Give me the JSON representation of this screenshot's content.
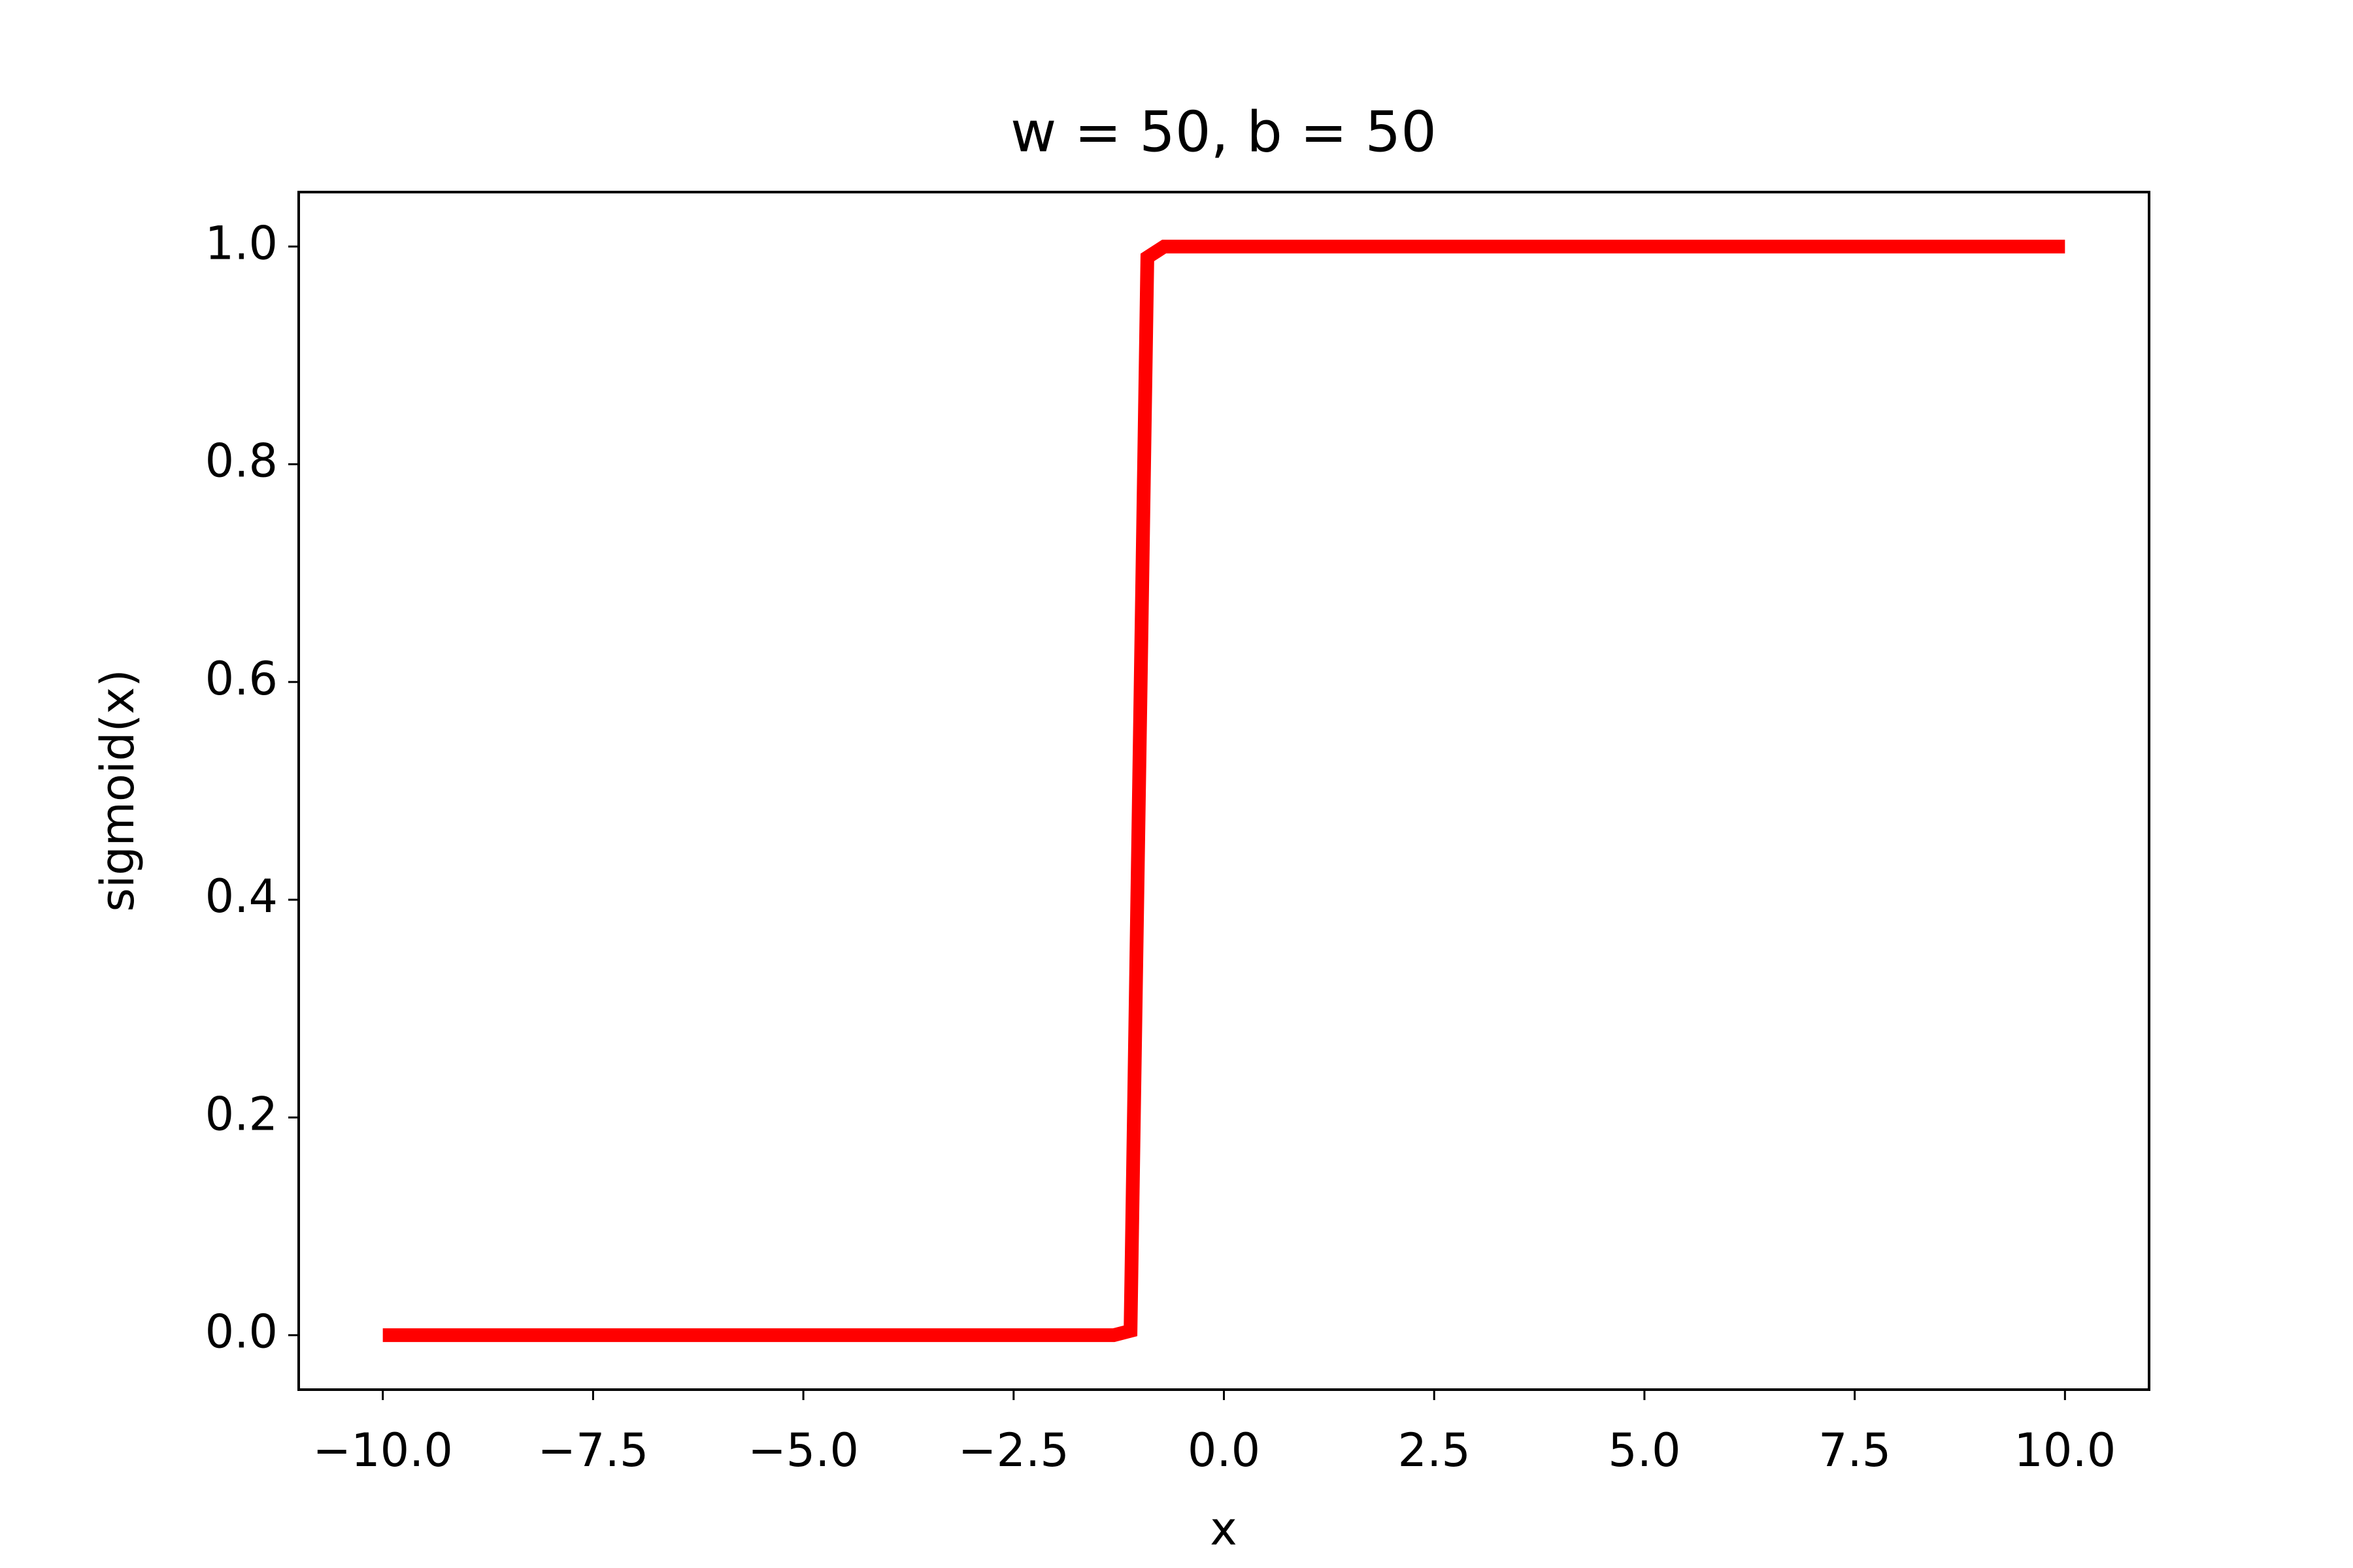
{
  "chart_data": {
    "type": "line",
    "title": "w = 50, b = 50",
    "xlabel": "x",
    "ylabel": "sigmoid(x)",
    "x": [
      -10,
      -1.31,
      -1.11,
      -0.91,
      -0.71,
      10
    ],
    "series": [
      {
        "color": "#ff0000",
        "values": [
          0,
          0,
          0.004,
          0.99,
          1,
          1
        ]
      }
    ],
    "xlim": [
      -11,
      11
    ],
    "ylim": [
      -0.05,
      1.05
    ],
    "xticks": [
      {
        "value": -10,
        "label": "−10.0"
      },
      {
        "value": -7.5,
        "label": "−7.5"
      },
      {
        "value": -5,
        "label": "−5.0"
      },
      {
        "value": -2.5,
        "label": "−2.5"
      },
      {
        "value": 0,
        "label": "0.0"
      },
      2.5,
      {
        "value": 5,
        "label": "5.0"
      },
      7.5,
      {
        "value": 10,
        "label": "10.0"
      }
    ],
    "yticks": [
      {
        "value": 0,
        "label": "0.0"
      },
      0.2,
      0.4,
      0.6,
      0.8,
      {
        "value": 1,
        "label": "1.0"
      }
    ],
    "grid": false
  }
}
